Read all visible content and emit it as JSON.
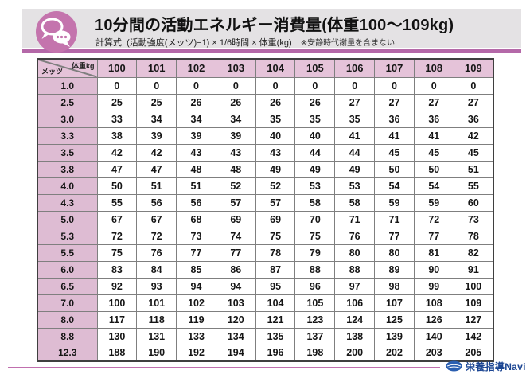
{
  "colors": {
    "accent_purple": "#b468a8",
    "icon_circle": "#c474ad",
    "table_header_pink": "#e5c3d9",
    "table_rowheader_pink": "#debcd3",
    "footer_line_pink": "#c06fae",
    "logo_blue": "#1c4693"
  },
  "header": {
    "title": "10分間の活動エネルギー消費量(体重100〜109kg)",
    "formula_label": "計算式:",
    "formula": "(活動強度(メッツ)−1) × 1/6時間 × 体重(kg)",
    "note": "※安静時代謝量を含まない",
    "icon": "speech-bubbles-icon"
  },
  "table": {
    "corner_top_right": "体重kg",
    "corner_bottom_left": "メッツ",
    "weights": [
      "100",
      "101",
      "102",
      "103",
      "104",
      "105",
      "106",
      "107",
      "108",
      "109"
    ],
    "rows": [
      {
        "mets": "1.0",
        "values": [
          0,
          0,
          0,
          0,
          0,
          0,
          0,
          0,
          0,
          0
        ]
      },
      {
        "mets": "2.5",
        "values": [
          25,
          25,
          26,
          26,
          26,
          26,
          27,
          27,
          27,
          27
        ]
      },
      {
        "mets": "3.0",
        "values": [
          33,
          34,
          34,
          34,
          35,
          35,
          35,
          36,
          36,
          36
        ]
      },
      {
        "mets": "3.3",
        "values": [
          38,
          39,
          39,
          39,
          40,
          40,
          41,
          41,
          41,
          42
        ]
      },
      {
        "mets": "3.5",
        "values": [
          42,
          42,
          43,
          43,
          43,
          44,
          44,
          45,
          45,
          45
        ]
      },
      {
        "mets": "3.8",
        "values": [
          47,
          47,
          48,
          48,
          49,
          49,
          49,
          50,
          50,
          51
        ]
      },
      {
        "mets": "4.0",
        "values": [
          50,
          51,
          51,
          52,
          52,
          53,
          53,
          54,
          54,
          55
        ]
      },
      {
        "mets": "4.3",
        "values": [
          55,
          56,
          56,
          57,
          57,
          58,
          58,
          59,
          59,
          60
        ]
      },
      {
        "mets": "5.0",
        "values": [
          67,
          67,
          68,
          69,
          69,
          70,
          71,
          71,
          72,
          73
        ]
      },
      {
        "mets": "5.3",
        "values": [
          72,
          72,
          73,
          74,
          75,
          75,
          76,
          77,
          77,
          78
        ]
      },
      {
        "mets": "5.5",
        "values": [
          75,
          76,
          77,
          77,
          78,
          79,
          80,
          80,
          81,
          82
        ]
      },
      {
        "mets": "6.0",
        "values": [
          83,
          84,
          85,
          86,
          87,
          88,
          88,
          89,
          90,
          91
        ]
      },
      {
        "mets": "6.5",
        "values": [
          92,
          93,
          94,
          94,
          95,
          96,
          97,
          98,
          99,
          100
        ]
      },
      {
        "mets": "7.0",
        "values": [
          100,
          101,
          102,
          103,
          104,
          105,
          106,
          107,
          108,
          109
        ]
      },
      {
        "mets": "8.0",
        "values": [
          117,
          118,
          119,
          120,
          121,
          123,
          124,
          125,
          126,
          127
        ]
      },
      {
        "mets": "8.8",
        "values": [
          130,
          131,
          133,
          134,
          135,
          137,
          138,
          139,
          140,
          142
        ]
      },
      {
        "mets": "12.3",
        "values": [
          188,
          190,
          192,
          194,
          196,
          198,
          200,
          202,
          203,
          205
        ]
      }
    ]
  },
  "footer": {
    "logo_text": "栄養指導Navi",
    "logo_icon": "navi-oval-logo-icon"
  }
}
